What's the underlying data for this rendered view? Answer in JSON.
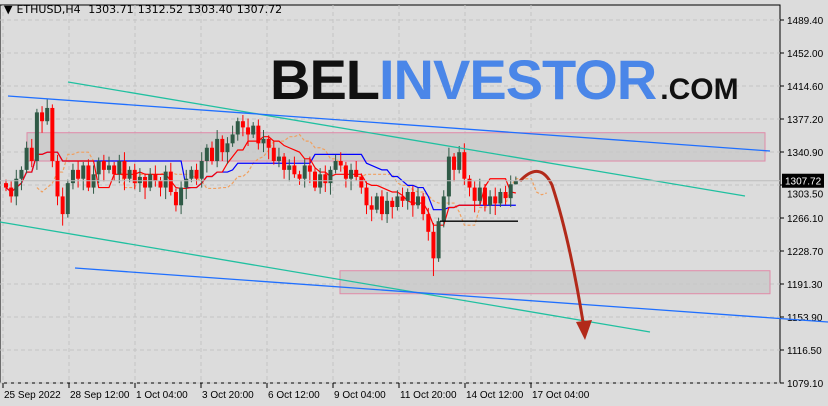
{
  "header": {
    "symbol": "ETHUSD,H4",
    "open": "1303.71",
    "high": "1312.52",
    "low": "1303.40",
    "close": "1307.72"
  },
  "logo": {
    "part1": "BEL",
    "part2": "INVESTOR",
    "part3": ".COM"
  },
  "colors": {
    "background": "#dcdcdc",
    "bull": "#2f5a46",
    "bear": "#ff0000",
    "trend_teal": "#20c0a0",
    "trend_blue": "#1f6fff",
    "zone": "#c8c8c8",
    "zone_border": "#e08aa8",
    "arrow": "#b22a1a",
    "kijun": "#0000ff",
    "tenkan": "#ff0000",
    "cloud": "#f0a060"
  },
  "chart_data": {
    "type": "candlestick",
    "symbol": "ETHUSD",
    "timeframe": "H4",
    "ylim": [
      1079.1,
      1489.4
    ],
    "y_ticks": [
      "1489.40",
      "1452.00",
      "1414.60",
      "1377.20",
      "1340.90",
      "1303.50",
      "1266.10",
      "1228.70",
      "1191.30",
      "1153.90",
      "1116.50",
      "1079.10"
    ],
    "x_ticks": [
      "25 Sep 2022",
      "28 Sep 12:00",
      "1 Oct 04:00",
      "3 Oct 20:00",
      "6 Oct 12:00",
      "9 Oct 04:00",
      "11 Oct 20:00",
      "14 Oct 12:00",
      "17 Oct 04:00"
    ],
    "last_price": "1307.72",
    "closes": [
      1300,
      1290,
      1310,
      1320,
      1345,
      1330,
      1385,
      1375,
      1390,
      1330,
      1290,
      1270,
      1305,
      1320,
      1310,
      1325,
      1300,
      1315,
      1330,
      1320,
      1325,
      1315,
      1330,
      1310,
      1320,
      1305,
      1312,
      1300,
      1315,
      1308,
      1300,
      1318,
      1295,
      1280,
      1300,
      1310,
      1320,
      1310,
      1330,
      1345,
      1330,
      1355,
      1340,
      1350,
      1360,
      1375,
      1368,
      1360,
      1370,
      1350,
      1355,
      1345,
      1330,
      1335,
      1320,
      1325,
      1315,
      1310,
      1325,
      1318,
      1300,
      1315,
      1305,
      1320,
      1330,
      1325,
      1310,
      1320,
      1312,
      1300,
      1280,
      1275,
      1290,
      1270,
      1285,
      1278,
      1290,
      1285,
      1295,
      1280,
      1290,
      1270,
      1250,
      1220,
      1262,
      1290,
      1335,
      1320,
      1340,
      1310,
      1300,
      1285,
      1300,
      1280,
      1290,
      1282,
      1295,
      1288,
      1303.71,
      1307.72
    ],
    "last_bar": {
      "open": 1303.71,
      "high": 1312.52,
      "low": 1303.4,
      "close": 1307.72
    },
    "zones": [
      {
        "from": 1330,
        "to": 1362
      },
      {
        "from": 1180,
        "to": 1206
      }
    ],
    "support_line": 1262,
    "grid": true
  }
}
